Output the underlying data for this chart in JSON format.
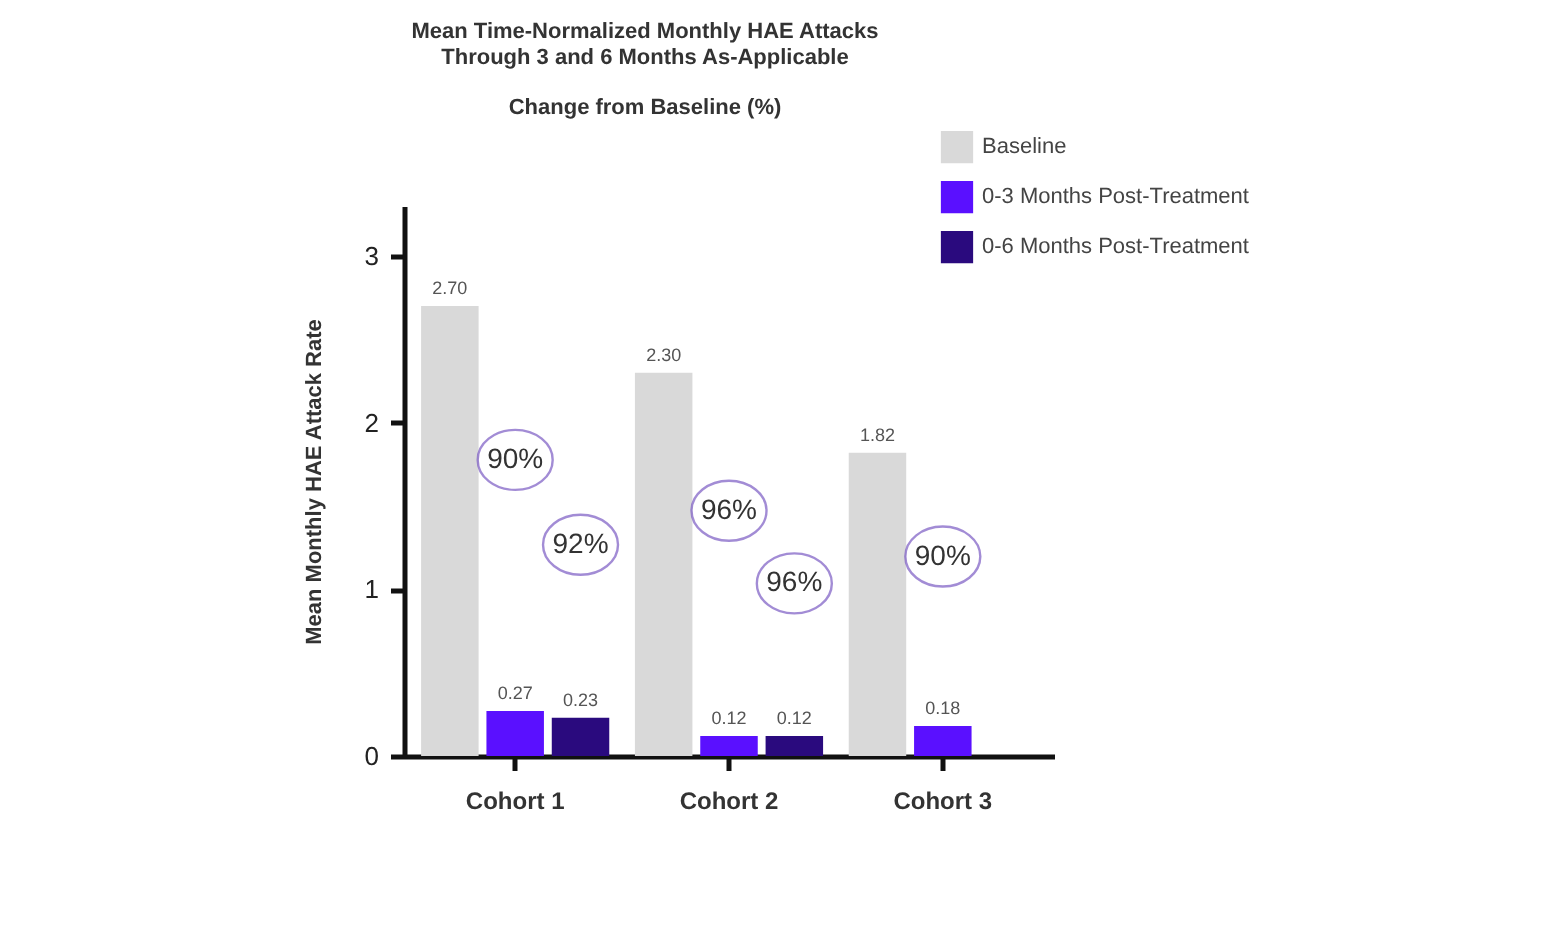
{
  "chart_data": {
    "type": "bar",
    "title": [
      "Mean Time-Normalized Monthly HAE Attacks",
      "Through 3 and 6 Months As-Applicable"
    ],
    "subtitle": "Change from Baseline (%)",
    "ylabel": "Mean Monthly HAE Attack Rate",
    "categories": [
      "Cohort 1",
      "Cohort 2",
      "Cohort 3"
    ],
    "series": [
      {
        "name": "Baseline",
        "color": "#d9d9d9",
        "values": [
          2.7,
          2.3,
          1.82
        ],
        "value_labels": [
          "2.70",
          "2.30",
          "1.82"
        ]
      },
      {
        "name": "0-3 Months  Post-Treatment",
        "color": "#5a10ff",
        "values": [
          0.27,
          0.12,
          0.18
        ],
        "value_labels": [
          "0.27",
          "0.12",
          "0.18"
        ]
      },
      {
        "name": "0-6 Months  Post-Treatment",
        "color": "#2a0a7e",
        "values": [
          0.23,
          0.12,
          null
        ],
        "value_labels": [
          "0.23",
          "0.12",
          null
        ]
      }
    ],
    "ylim": [
      0,
      3.3
    ],
    "yticks": [
      0,
      1,
      2,
      3
    ],
    "grid": false,
    "legend": "top right",
    "annotations": [
      "90%",
      "92%",
      "96%",
      "96%",
      "90%"
    ]
  }
}
